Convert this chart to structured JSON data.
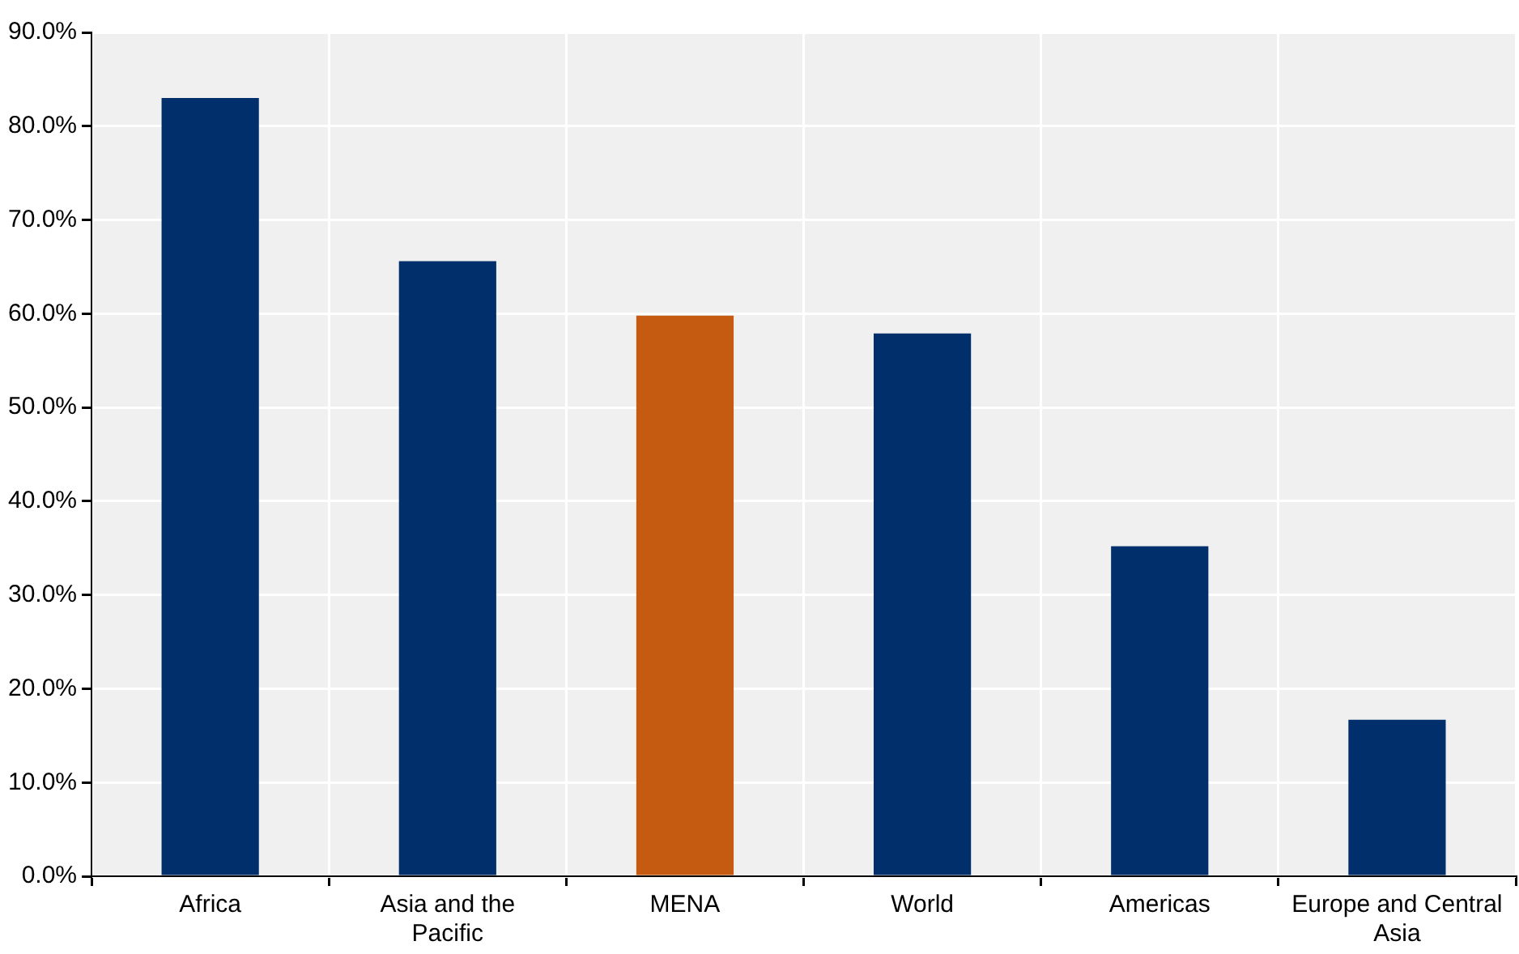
{
  "chart_data": {
    "type": "bar",
    "categories": [
      "Africa",
      "Asia and the Pacific",
      "MENA",
      "World",
      "Americas",
      "Europe and Central Asia"
    ],
    "values": [
      83.0,
      65.6,
      59.8,
      57.9,
      35.2,
      16.7
    ],
    "colors": [
      "#002f6c",
      "#002f6c",
      "#c55a11",
      "#002f6c",
      "#002f6c",
      "#002f6c"
    ],
    "ylim": [
      0,
      90
    ],
    "yticks": [
      {
        "value": 0,
        "label": "0.0%"
      },
      {
        "value": 10,
        "label": "10.0%"
      },
      {
        "value": 20,
        "label": "20.0%"
      },
      {
        "value": 30,
        "label": "30.0%"
      },
      {
        "value": 40,
        "label": "40.0%"
      },
      {
        "value": 50,
        "label": "50.0%"
      },
      {
        "value": 60,
        "label": "60.0%"
      },
      {
        "value": 70,
        "label": "70.0%"
      },
      {
        "value": 80,
        "label": "80.0%"
      },
      {
        "value": 90,
        "label": "90.0%"
      }
    ],
    "grid": true,
    "legend": false
  }
}
